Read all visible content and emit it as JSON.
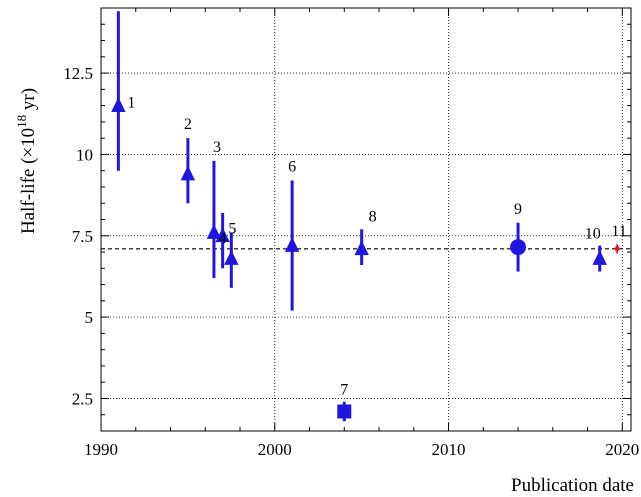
{
  "chart_data": {
    "type": "scatter",
    "xlabel": "Publication date",
    "ylabel": "Half-life (×10",
    "ylabel_sup": "18",
    "ylabel_unit": " yr)",
    "xlim": [
      1990,
      2020.5
    ],
    "ylim": [
      1.5,
      14.5
    ],
    "x_ticks": [
      1990,
      2000,
      2010,
      2020
    ],
    "y_ticks": [
      2.5,
      5,
      7.5,
      10,
      12.5
    ],
    "y_tick_labels": [
      "2.5",
      "5",
      "7.5",
      "10",
      "12.5"
    ],
    "grid": true,
    "grid_style": "dotted",
    "reference_line": {
      "y": 7.1,
      "style": "dashed",
      "color": "#000000"
    },
    "colors": {
      "measurement": "#1f16e0",
      "latest": "#e5131a"
    },
    "points": [
      {
        "label": "1",
        "x": 1991.0,
        "y": 11.5,
        "err_low": 9.5,
        "err_high": 14.4,
        "marker": "triangle",
        "color": "#1f16e0"
      },
      {
        "label": "2",
        "x": 1995.0,
        "y": 9.4,
        "err_low": 8.5,
        "err_high": 10.5,
        "marker": "triangle",
        "color": "#1f16e0"
      },
      {
        "label": "3",
        "x": 1996.5,
        "y": 7.6,
        "err_low": 6.2,
        "err_high": 9.8,
        "marker": "triangle",
        "color": "#1f16e0"
      },
      {
        "label": "4",
        "x": 1997.0,
        "y": 7.5,
        "err_low": 6.5,
        "err_high": 8.2,
        "marker": "triangle",
        "color": "#1f16e0"
      },
      {
        "label": "5",
        "x": 1997.5,
        "y": 6.8,
        "err_low": 5.9,
        "err_high": 7.6,
        "marker": "triangle",
        "color": "#1f16e0"
      },
      {
        "label": "6",
        "x": 2001.0,
        "y": 7.2,
        "err_low": 5.2,
        "err_high": 9.2,
        "marker": "triangle",
        "color": "#1f16e0"
      },
      {
        "label": "7",
        "x": 2004.0,
        "y": 2.1,
        "err_low": 1.8,
        "err_high": 2.4,
        "marker": "square",
        "color": "#1f16e0"
      },
      {
        "label": "8",
        "x": 2005.0,
        "y": 7.1,
        "err_low": 6.6,
        "err_high": 7.7,
        "marker": "triangle",
        "color": "#1f16e0"
      },
      {
        "label": "9",
        "x": 2014.0,
        "y": 7.15,
        "err_low": 6.4,
        "err_high": 7.9,
        "marker": "circle",
        "color": "#1f16e0"
      },
      {
        "label": "10",
        "x": 2018.7,
        "y": 6.8,
        "err_low": 6.4,
        "err_high": 7.2,
        "marker": "triangle",
        "color": "#1f16e0"
      },
      {
        "label": "11",
        "x": 2019.7,
        "y": 7.1,
        "err_low": 6.95,
        "err_high": 7.25,
        "marker": "diamond",
        "color": "#e5131a"
      }
    ]
  }
}
